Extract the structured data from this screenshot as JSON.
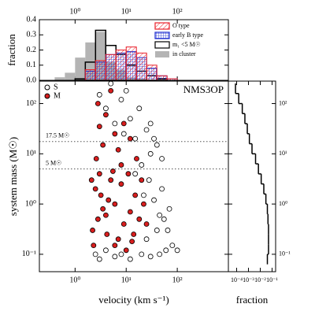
{
  "chart_data": [
    {
      "type": "histogram",
      "ylabel": "fraction",
      "xlog": true,
      "xlim": [
        0.2,
        1000
      ],
      "xticks": [
        {
          "value": 1,
          "label": "10⁰"
        },
        {
          "value": 10,
          "label": "10¹"
        },
        {
          "value": 100,
          "label": "10²"
        }
      ],
      "ylim": [
        0,
        0.4
      ],
      "yticks": [
        {
          "value": 0,
          "label": "0.0"
        },
        0.1,
        0.2,
        0.3,
        0.4
      ],
      "bins": [
        0.398,
        0.631,
        1,
        1.585,
        2.512,
        3.981,
        6.31,
        10,
        15.85,
        25.12,
        39.81,
        63.1,
        100,
        158.5
      ],
      "series": [
        {
          "name": "O type",
          "color": "#e8202a",
          "style": "diagonal",
          "values": [
            0,
            0,
            0,
            0.07,
            0.13,
            0.17,
            0.2,
            0.22,
            0.18,
            0.1,
            0.03,
            0.01,
            0
          ]
        },
        {
          "name": "early B type",
          "color": "#2030d0",
          "style": "cross",
          "values": [
            0,
            0,
            0,
            0.06,
            0.12,
            0.17,
            0.18,
            0.19,
            0.15,
            0.08,
            0.03,
            0.01,
            0
          ]
        },
        {
          "name": "m₁ <5 M☉",
          "color": "#000000",
          "style": "outline",
          "values": [
            0,
            0,
            0.01,
            0.12,
            0.33,
            0.23,
            0.17,
            0.1,
            0.06,
            0.03,
            0.01,
            0,
            0
          ]
        },
        {
          "name": "in cluster",
          "color": "#b4b4b4",
          "style": "filled",
          "values": [
            0.02,
            0.05,
            0.15,
            0.25,
            0.32,
            0.12,
            0.07,
            0.02,
            0.01,
            0,
            0,
            0,
            0
          ]
        }
      ]
    },
    {
      "type": "scatter",
      "label": "NMS3OP",
      "xlabel": "velocity (km s⁻¹)",
      "ylabel": "system mass (M☉)",
      "xlog": true,
      "ylog": true,
      "xlim": [
        0.2,
        1000
      ],
      "xticks": [
        {
          "value": 1,
          "label": "10⁰"
        },
        {
          "value": 10,
          "label": "10¹"
        },
        {
          "value": 100,
          "label": "10²"
        }
      ],
      "ylim": [
        0.045,
        280
      ],
      "yticks": [
        {
          "value": 0.1,
          "label": "10⁻¹"
        },
        {
          "value": 1,
          "label": "10⁰"
        },
        {
          "value": 10,
          "label": "10¹"
        },
        {
          "value": 100,
          "label": "10²"
        }
      ],
      "annotations": [
        {
          "text": "17.5 M☉",
          "y": 17.5
        },
        {
          "text": "5 M☉",
          "y": 5
        }
      ],
      "series": [
        {
          "name": "S",
          "color": "#000000",
          "filled": false,
          "x": [
            2.5,
            3,
            4,
            6,
            8,
            12,
            20,
            30,
            45,
            60,
            25,
            40,
            55,
            70,
            35,
            50,
            28,
            20,
            30,
            40,
            15,
            25,
            12,
            18,
            8,
            10,
            5,
            30,
            50,
            80,
            65,
            45,
            22,
            15,
            6,
            9,
            100,
            3,
            4,
            35
          ],
          "values": [
            0.1,
            0.08,
            0.12,
            0.09,
            0.1,
            0.08,
            0.1,
            0.09,
            0.1,
            0.12,
            0.2,
            0.3,
            0.5,
            0.8,
            1.2,
            2,
            3,
            6,
            10,
            15,
            20,
            30,
            50,
            80,
            120,
            180,
            250,
            40,
            8,
            0.15,
            0.3,
            0.6,
            1.5,
            4,
            40,
            25,
            0.12,
            150,
            80,
            20
          ]
        },
        {
          "name": "M",
          "color": "#d81e1e",
          "filled": true,
          "x": [
            2.2,
            2.8,
            3.5,
            4.5,
            2.5,
            5,
            3,
            7,
            9,
            12,
            15,
            8,
            6,
            10,
            14,
            18,
            20,
            4,
            6,
            2.3,
            3.2,
            5.5,
            11,
            2.6,
            3.5,
            6,
            4,
            2.8,
            7,
            9,
            5,
            3,
            16,
            12,
            25,
            22,
            8,
            2.1,
            4.2,
            13
          ],
          "values": [
            0.3,
            0.5,
            0.8,
            1.2,
            2,
            3,
            4,
            0.2,
            0.4,
            0.7,
            1.5,
            2.5,
            0.15,
            0.12,
            0.25,
            0.5,
            3,
            0.6,
            1,
            0.15,
            1.5,
            4.5,
            4,
            8,
            15,
            25,
            60,
            100,
            12,
            40,
            180,
            35,
            8,
            20,
            0.4,
            1,
            6,
            3,
            0.25,
            0.18
          ]
        }
      ]
    },
    {
      "type": "histogram",
      "orientation": "horizontal",
      "xlabel": "fraction",
      "xlog": true,
      "ylog": true,
      "xlim": [
        2e-05,
        0.2
      ],
      "xticks": [
        {
          "value": 0.0001,
          "label": "10⁻⁴"
        },
        {
          "value": 0.001,
          "label": "10⁻³"
        },
        {
          "value": 0.01,
          "label": "10⁻²"
        },
        {
          "value": 0.1,
          "label": "10⁻¹"
        }
      ],
      "ylim": [
        0.045,
        280
      ],
      "yticks": [
        {
          "value": 0.1,
          "label": "10⁻¹"
        },
        {
          "value": 1,
          "label": "10⁰"
        },
        {
          "value": 10,
          "label": "10¹"
        },
        {
          "value": 100,
          "label": "10²"
        }
      ],
      "color": "#000000",
      "bins": [
        0.0631,
        0.1,
        0.158,
        0.251,
        0.398,
        0.631,
        1,
        1.585,
        2.512,
        3.981,
        6.31,
        10,
        15.85,
        25.12,
        39.81,
        63.1,
        100,
        158.5,
        251.2
      ],
      "values": [
        0.04,
        0.05,
        0.05,
        0.05,
        0.045,
        0.04,
        0.03,
        0.02,
        0.012,
        0.007,
        0.004,
        0.002,
        0.0012,
        0.0008,
        0.0005,
        0.0003,
        0.00015,
        8e-05
      ]
    }
  ]
}
